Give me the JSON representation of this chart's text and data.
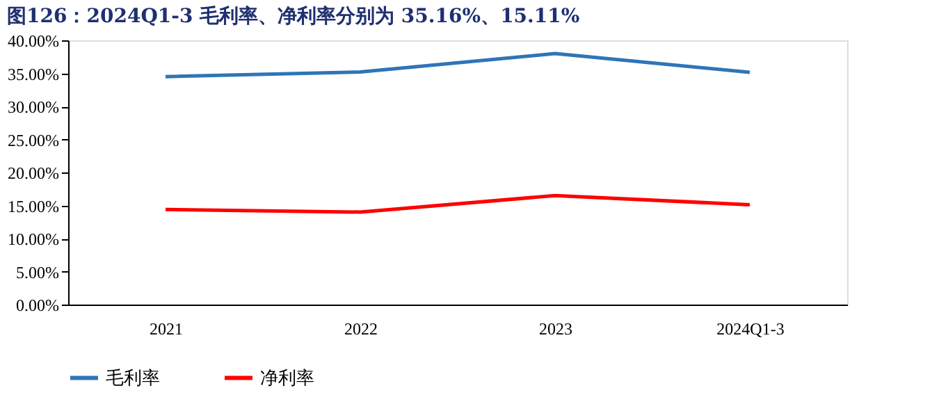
{
  "chart_data": {
    "type": "line",
    "title": "图126：2024Q1-3 毛利率、净利率分别为 35.16%、15.11%",
    "categories": [
      "2021",
      "2022",
      "2023",
      "2024Q1-3"
    ],
    "series": [
      {
        "name": "毛利率",
        "color": "#2e75b6",
        "values": [
          34.5,
          35.2,
          38.0,
          35.16
        ]
      },
      {
        "name": "净利率",
        "color": "#ff0000",
        "values": [
          14.4,
          14.0,
          16.5,
          15.11
        ]
      }
    ],
    "ylim": [
      0,
      40
    ],
    "yticks": [
      {
        "value": 0,
        "label": "0.00%"
      },
      {
        "value": 5,
        "label": "5.00%"
      },
      {
        "value": 10,
        "label": "10.00%"
      },
      {
        "value": 15,
        "label": "15.00%"
      },
      {
        "value": 20,
        "label": "20.00%"
      },
      {
        "value": 25,
        "label": "25.00%"
      },
      {
        "value": 30,
        "label": "30.00%"
      },
      {
        "value": 35,
        "label": "35.00%"
      },
      {
        "value": 40,
        "label": "40.00%"
      }
    ],
    "grid": false,
    "legend": "bottom",
    "marker": "none",
    "line_style": "solid"
  }
}
